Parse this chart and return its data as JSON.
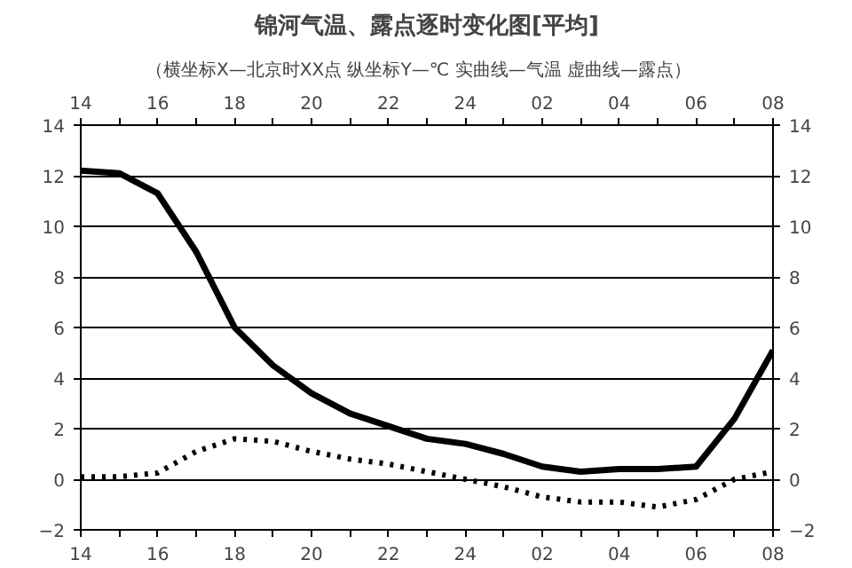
{
  "chart_data": {
    "type": "line",
    "title": "锦河气温、露点逐时变化图[平均]",
    "subtitle": "（横坐标X—北京时XX点  纵坐标Y—℃  实曲线—气温  虚曲线—露点）",
    "categories": [
      "14",
      null,
      "16",
      null,
      "18",
      null,
      "20",
      null,
      "22",
      null,
      "24",
      null,
      "02",
      null,
      "04",
      null,
      "06",
      null,
      "08"
    ],
    "series": [
      {
        "color": "#000000",
        "line_style": "solid",
        "values": [
          12.2,
          12.1,
          11.3,
          9.0,
          6.0,
          4.5,
          3.4,
          2.6,
          2.1,
          1.6,
          1.4,
          1.0,
          0.5,
          0.3,
          0.4,
          0.4,
          0.5,
          2.4,
          5.1
        ]
      },
      {
        "color": "#000000",
        "line_style": "dotted",
        "values": [
          0.1,
          0.1,
          0.25,
          1.1,
          1.6,
          1.5,
          1.1,
          0.8,
          0.6,
          0.3,
          0.0,
          -0.3,
          -0.7,
          -0.9,
          -0.9,
          -1.1,
          -0.8,
          0.0,
          0.3
        ]
      }
    ],
    "ylim": [
      -2,
      14
    ],
    "yticks": [
      -2,
      0,
      2,
      4,
      6,
      8,
      10,
      12,
      14
    ],
    "y2lim": [
      -2,
      14
    ],
    "y2ticks": [
      -2,
      0,
      2,
      4,
      6,
      8,
      10,
      12,
      14
    ],
    "grid": "y",
    "marker": "none"
  }
}
